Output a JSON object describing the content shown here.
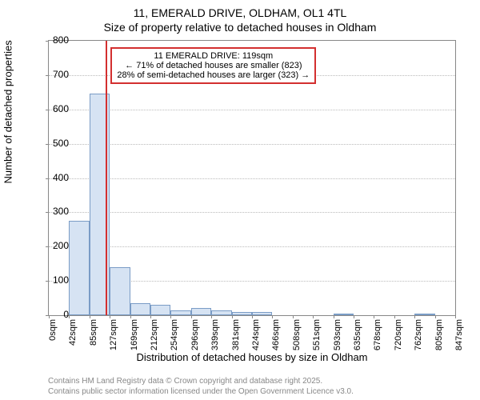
{
  "title_line1": "11, EMERALD DRIVE, OLDHAM, OL1 4TL",
  "title_line2": "Size of property relative to detached houses in Oldham",
  "chart": {
    "type": "bar",
    "y_axis_title": "Number of detached properties",
    "x_axis_title": "Distribution of detached houses by size in Oldham",
    "ylim": [
      0,
      800
    ],
    "ytick_step": 100,
    "yticks": [
      0,
      100,
      200,
      300,
      400,
      500,
      600,
      700,
      800
    ],
    "xlim": [
      0,
      847
    ],
    "xtick_step": 42.35,
    "xticks": [
      "0sqm",
      "42sqm",
      "85sqm",
      "127sqm",
      "169sqm",
      "212sqm",
      "254sqm",
      "296sqm",
      "339sqm",
      "381sqm",
      "424sqm",
      "466sqm",
      "508sqm",
      "551sqm",
      "593sqm",
      "635sqm",
      "678sqm",
      "720sqm",
      "762sqm",
      "805sqm",
      "847sqm"
    ],
    "bar_width_sqm": 42.35,
    "bar_fill": "#d6e3f3",
    "bar_border": "#7a9cc6",
    "background_color": "#ffffff",
    "grid_color": "#bbbbbb",
    "series": [
      {
        "x_start": 42.35,
        "value": 275
      },
      {
        "x_start": 84.7,
        "value": 645
      },
      {
        "x_start": 127.05,
        "value": 140
      },
      {
        "x_start": 169.4,
        "value": 35
      },
      {
        "x_start": 211.75,
        "value": 30
      },
      {
        "x_start": 254.1,
        "value": 15
      },
      {
        "x_start": 296.45,
        "value": 20
      },
      {
        "x_start": 338.8,
        "value": 15
      },
      {
        "x_start": 381.15,
        "value": 10
      },
      {
        "x_start": 423.5,
        "value": 10
      },
      {
        "x_start": 465.85,
        "value": 0
      },
      {
        "x_start": 508.2,
        "value": 0
      },
      {
        "x_start": 550.55,
        "value": 0
      },
      {
        "x_start": 592.9,
        "value": 4
      },
      {
        "x_start": 635.25,
        "value": 0
      },
      {
        "x_start": 677.6,
        "value": 0
      },
      {
        "x_start": 719.95,
        "value": 0
      },
      {
        "x_start": 762.3,
        "value": 4
      },
      {
        "x_start": 804.65,
        "value": 0
      }
    ],
    "marker": {
      "x_value": 119,
      "color": "#d32f2f"
    },
    "annotation": {
      "line1": "11 EMERALD DRIVE: 119sqm",
      "line2": "← 71% of detached houses are smaller (823)",
      "line3": "28% of semi-detached houses are larger (323) →",
      "border_color": "#d32f2f",
      "fontsize": 11
    }
  },
  "fineprint_line1": "Contains HM Land Registry data © Crown copyright and database right 2025.",
  "fineprint_line2": "Contains public sector information licensed under the Open Government Licence v3.0."
}
